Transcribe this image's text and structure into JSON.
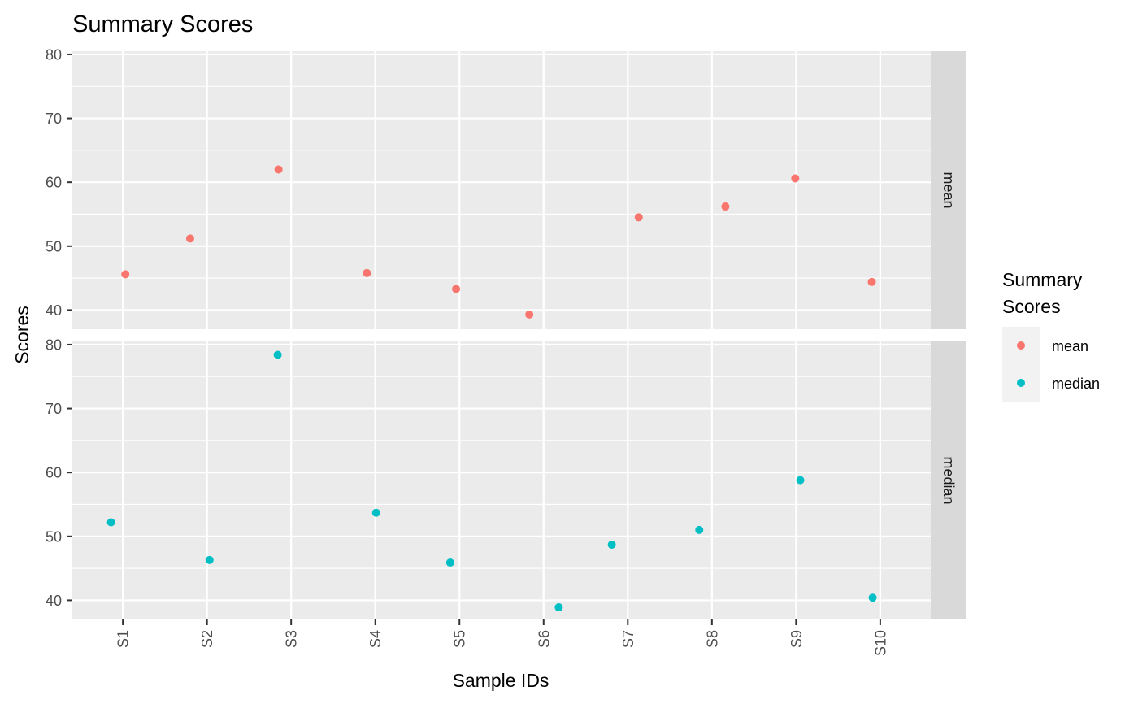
{
  "chart_data": {
    "type": "scatter",
    "title": "Summary Scores",
    "xlabel": "Sample IDs",
    "ylabel": "Scores",
    "categories": [
      "S1",
      "S2",
      "S3",
      "S4",
      "S5",
      "S6",
      "S7",
      "S8",
      "S9",
      "S10"
    ],
    "ylim": [
      37,
      80.5
    ],
    "yticks": [
      40,
      50,
      60,
      70,
      80
    ],
    "grid": true,
    "facets": [
      "mean",
      "median"
    ],
    "legend": {
      "title_lines": [
        "Summary",
        "Scores"
      ],
      "placement": "right",
      "entries": [
        "mean",
        "median"
      ]
    },
    "series": [
      {
        "name": "mean",
        "color": "#F8766D",
        "points": [
          {
            "x": "S1",
            "jitter": 0.03,
            "y": 45.6
          },
          {
            "x": "S2",
            "jitter": -0.2,
            "y": 51.2
          },
          {
            "x": "S3",
            "jitter": -0.15,
            "y": 62.0
          },
          {
            "x": "S4",
            "jitter": -0.1,
            "y": 45.8
          },
          {
            "x": "S5",
            "jitter": -0.04,
            "y": 43.3
          },
          {
            "x": "S6",
            "jitter": -0.17,
            "y": 39.3
          },
          {
            "x": "S7",
            "jitter": 0.13,
            "y": 54.5
          },
          {
            "x": "S8",
            "jitter": 0.16,
            "y": 56.2
          },
          {
            "x": "S9",
            "jitter": -0.01,
            "y": 60.6
          },
          {
            "x": "S10",
            "jitter": -0.1,
            "y": 44.4
          }
        ]
      },
      {
        "name": "median",
        "color": "#00BFC4",
        "points": [
          {
            "x": "S1",
            "jitter": -0.14,
            "y": 52.2
          },
          {
            "x": "S2",
            "jitter": 0.03,
            "y": 46.3
          },
          {
            "x": "S3",
            "jitter": -0.16,
            "y": 78.4
          },
          {
            "x": "S4",
            "jitter": 0.01,
            "y": 53.7
          },
          {
            "x": "S5",
            "jitter": -0.11,
            "y": 45.9
          },
          {
            "x": "S6",
            "jitter": 0.18,
            "y": 38.9
          },
          {
            "x": "S7",
            "jitter": -0.19,
            "y": 48.7
          },
          {
            "x": "S8",
            "jitter": -0.15,
            "y": 51.0
          },
          {
            "x": "S9",
            "jitter": 0.05,
            "y": 58.8
          },
          {
            "x": "S10",
            "jitter": -0.09,
            "y": 40.4
          }
        ]
      }
    ]
  }
}
